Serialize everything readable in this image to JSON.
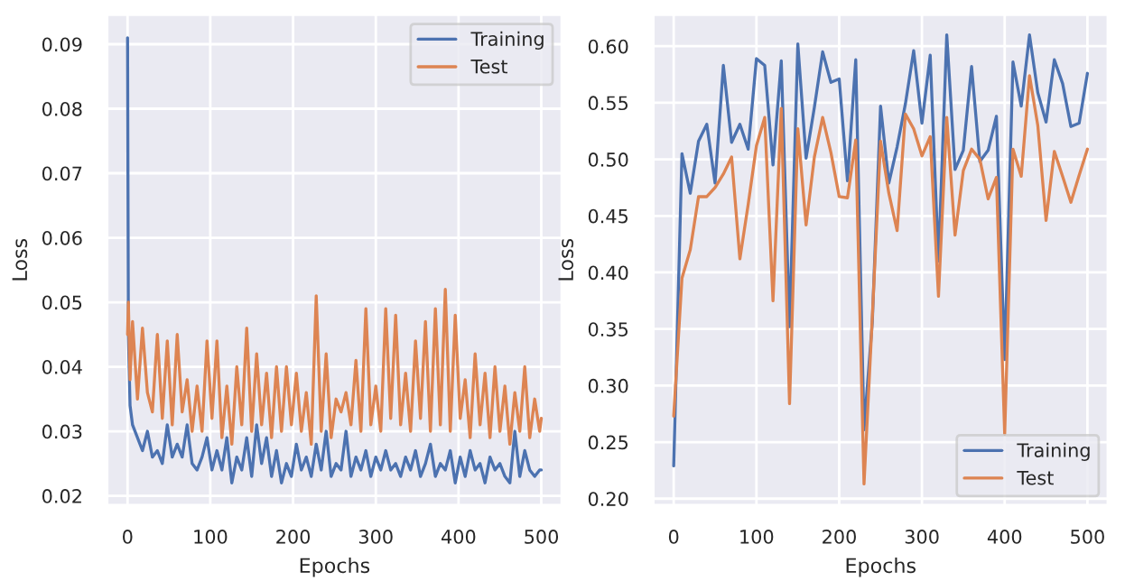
{
  "chart_data": [
    {
      "type": "line",
      "xlabel": "Epochs",
      "ylabel": "Loss",
      "xlim": [
        -25,
        525
      ],
      "ylim": [
        0.0185,
        0.0946
      ],
      "xticks": [
        0,
        100,
        200,
        300,
        400,
        500
      ],
      "yticks": [
        0.02,
        0.03,
        0.04,
        0.05,
        0.06,
        0.07,
        0.08,
        0.09
      ],
      "grid": true,
      "legend": "top right",
      "x": [
        0,
        1,
        3,
        6,
        12,
        18,
        24,
        30,
        36,
        42,
        48,
        54,
        60,
        66,
        72,
        78,
        84,
        90,
        96,
        102,
        108,
        114,
        120,
        126,
        132,
        138,
        144,
        150,
        156,
        162,
        168,
        174,
        180,
        186,
        192,
        198,
        204,
        210,
        216,
        222,
        228,
        234,
        240,
        246,
        252,
        258,
        264,
        270,
        276,
        282,
        288,
        294,
        300,
        306,
        312,
        318,
        324,
        330,
        336,
        342,
        348,
        354,
        360,
        366,
        372,
        378,
        384,
        390,
        396,
        402,
        408,
        414,
        420,
        426,
        432,
        438,
        444,
        450,
        456,
        462,
        468,
        474,
        480,
        486,
        492,
        498,
        500
      ],
      "series": [
        {
          "name": "Training",
          "color": "#4c72b0",
          "values": [
            0.091,
            0.045,
            0.034,
            0.031,
            0.029,
            0.027,
            0.03,
            0.026,
            0.027,
            0.025,
            0.031,
            0.026,
            0.028,
            0.026,
            0.031,
            0.025,
            0.024,
            0.026,
            0.029,
            0.024,
            0.027,
            0.024,
            0.029,
            0.022,
            0.026,
            0.024,
            0.029,
            0.023,
            0.031,
            0.025,
            0.029,
            0.023,
            0.027,
            0.022,
            0.025,
            0.023,
            0.028,
            0.024,
            0.026,
            0.023,
            0.028,
            0.024,
            0.03,
            0.023,
            0.025,
            0.024,
            0.03,
            0.023,
            0.026,
            0.024,
            0.027,
            0.023,
            0.026,
            0.024,
            0.027,
            0.024,
            0.025,
            0.023,
            0.026,
            0.024,
            0.027,
            0.023,
            0.025,
            0.028,
            0.023,
            0.025,
            0.024,
            0.027,
            0.022,
            0.026,
            0.023,
            0.027,
            0.024,
            0.025,
            0.022,
            0.026,
            0.024,
            0.025,
            0.023,
            0.022,
            0.03,
            0.023,
            0.027,
            0.024,
            0.023,
            0.024,
            0.024
          ]
        },
        {
          "name": "Test",
          "color": "#dd8452",
          "values": [
            0.045,
            0.05,
            0.038,
            0.047,
            0.035,
            0.046,
            0.036,
            0.033,
            0.045,
            0.032,
            0.044,
            0.031,
            0.045,
            0.033,
            0.038,
            0.03,
            0.037,
            0.03,
            0.044,
            0.032,
            0.044,
            0.029,
            0.037,
            0.028,
            0.04,
            0.031,
            0.046,
            0.03,
            0.042,
            0.031,
            0.039,
            0.029,
            0.04,
            0.03,
            0.04,
            0.031,
            0.039,
            0.03,
            0.036,
            0.028,
            0.051,
            0.03,
            0.042,
            0.029,
            0.035,
            0.033,
            0.036,
            0.031,
            0.041,
            0.03,
            0.049,
            0.031,
            0.037,
            0.03,
            0.049,
            0.032,
            0.048,
            0.031,
            0.039,
            0.03,
            0.044,
            0.032,
            0.047,
            0.03,
            0.049,
            0.031,
            0.052,
            0.03,
            0.048,
            0.032,
            0.038,
            0.029,
            0.042,
            0.031,
            0.039,
            0.029,
            0.04,
            0.03,
            0.037,
            0.028,
            0.036,
            0.03,
            0.04,
            0.029,
            0.035,
            0.03,
            0.032
          ]
        }
      ]
    },
    {
      "type": "line",
      "xlabel": "Epochs",
      "ylabel": "Loss",
      "xlim": [
        -25,
        525
      ],
      "ylim": [
        0.194,
        0.628
      ],
      "xticks": [
        0,
        100,
        200,
        300,
        400,
        500
      ],
      "yticks": [
        {
          "value": 0.2,
          "label": "0.20"
        },
        0.25,
        {
          "value": 0.3,
          "label": "0.30"
        },
        0.35,
        {
          "value": 0.4,
          "label": "0.40"
        },
        0.45,
        {
          "value": 0.5,
          "label": "0.50"
        },
        0.55,
        {
          "value": 0.6,
          "label": "0.60"
        }
      ],
      "grid": true,
      "legend": "bottom right",
      "x": [
        0,
        10,
        20,
        30,
        40,
        50,
        60,
        70,
        80,
        90,
        100,
        110,
        120,
        130,
        140,
        150,
        160,
        170,
        180,
        190,
        200,
        210,
        220,
        230,
        240,
        250,
        260,
        270,
        280,
        290,
        300,
        310,
        320,
        330,
        340,
        350,
        360,
        370,
        380,
        390,
        400,
        410,
        420,
        430,
        440,
        450,
        460,
        470,
        480,
        490,
        500
      ],
      "series": [
        {
          "name": "Training",
          "color": "#4c72b0",
          "values": [
            0.229,
            0.505,
            0.47,
            0.516,
            0.531,
            0.479,
            0.583,
            0.515,
            0.531,
            0.509,
            0.589,
            0.583,
            0.495,
            0.587,
            0.352,
            0.602,
            0.501,
            0.546,
            0.595,
            0.568,
            0.571,
            0.481,
            0.588,
            0.261,
            0.356,
            0.547,
            0.479,
            0.511,
            0.549,
            0.596,
            0.532,
            0.592,
            0.41,
            0.61,
            0.491,
            0.508,
            0.582,
            0.498,
            0.508,
            0.538,
            0.323,
            0.586,
            0.547,
            0.61,
            0.559,
            0.533,
            0.588,
            0.567,
            0.529,
            0.532,
            0.576
          ]
        },
        {
          "name": "Test",
          "color": "#dd8452",
          "values": [
            0.273,
            0.395,
            0.42,
            0.467,
            0.467,
            0.475,
            0.487,
            0.502,
            0.412,
            0.46,
            0.512,
            0.537,
            0.375,
            0.545,
            0.284,
            0.527,
            0.442,
            0.502,
            0.537,
            0.506,
            0.467,
            0.466,
            0.517,
            0.213,
            0.36,
            0.516,
            0.47,
            0.437,
            0.54,
            0.527,
            0.503,
            0.52,
            0.379,
            0.537,
            0.433,
            0.49,
            0.509,
            0.5,
            0.465,
            0.484,
            0.257,
            0.509,
            0.485,
            0.574,
            0.53,
            0.446,
            0.507,
            0.485,
            0.462,
            0.486,
            0.509
          ]
        }
      ]
    }
  ]
}
